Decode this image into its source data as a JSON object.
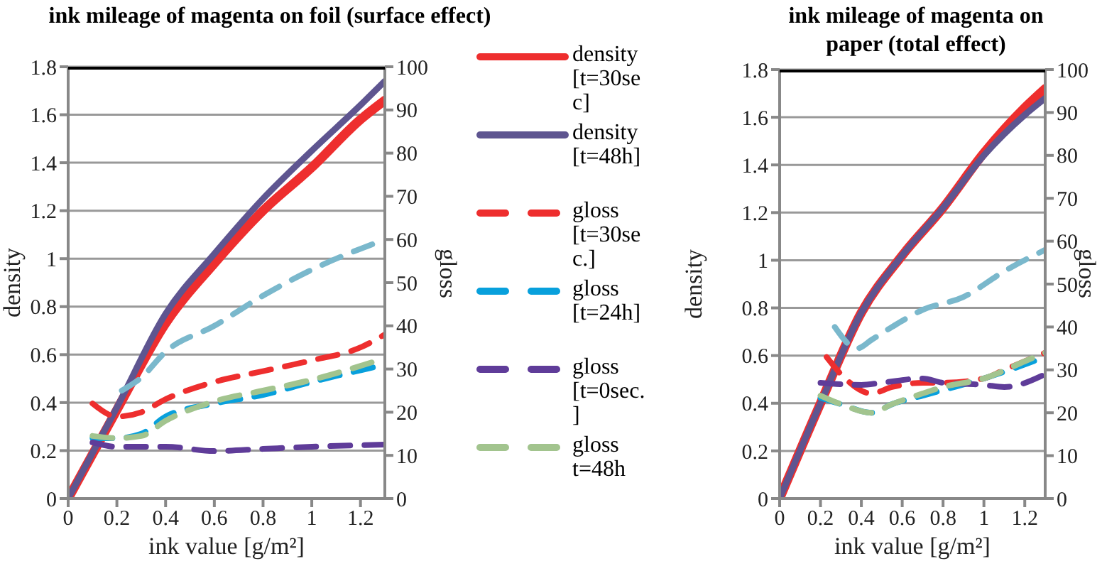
{
  "chart_data": [
    {
      "type": "line",
      "title": "ink mileage of magenta on foil (surface effect)",
      "xlabel": "ink value [g/m²]",
      "ylabel": "density",
      "y2label": "gloss",
      "xlim": [
        0,
        1.3
      ],
      "xticks": [
        0,
        0.2,
        0.4,
        0.6,
        0.8,
        1,
        1.2
      ],
      "ylim": [
        0,
        1.8
      ],
      "yticks": [
        0,
        0.2,
        0.4,
        0.6,
        0.8,
        1,
        1.2,
        1.4,
        1.6,
        1.8
      ],
      "y2lim": [
        0,
        100
      ],
      "y2ticks": [
        0,
        10,
        20,
        30,
        40,
        50,
        60,
        70,
        80,
        90,
        100
      ],
      "grid": "y",
      "legend": "right",
      "series": [
        {
          "name": "density [t=30sec]",
          "color": "#ee2e2e",
          "line_style": "solid",
          "x": [
            0,
            0.2,
            0.4,
            0.6,
            0.8,
            1,
            1.2,
            1.3
          ],
          "values": [
            0,
            0.37,
            0.73,
            0.98,
            1.2,
            1.38,
            1.58,
            1.66
          ]
        },
        {
          "name": "density [t=48h]",
          "color": "#5e5590",
          "line_style": "solid",
          "x": [
            0,
            0.2,
            0.4,
            0.6,
            0.8,
            1,
            1.2,
            1.3
          ],
          "values": [
            0,
            0.38,
            0.77,
            1.02,
            1.25,
            1.45,
            1.64,
            1.74
          ]
        },
        {
          "name": "gloss [t=30sec.]",
          "color": "#ee2e2e",
          "line_style": "dashed",
          "axis": "y2",
          "x": [
            0.1,
            0.2,
            0.3,
            0.4,
            0.6,
            0.8,
            1,
            1.2,
            1.3
          ],
          "values": [
            22,
            19,
            20,
            23,
            27,
            29.5,
            32,
            35,
            38
          ]
        },
        {
          "name": "gloss [t=24h]",
          "color": "#08a0dc",
          "line_style": "dashed",
          "axis": "y2",
          "x": [
            0.1,
            0.2,
            0.3,
            0.4,
            0.6,
            0.8,
            1,
            1.3
          ],
          "values": [
            14,
            14,
            15,
            19,
            22,
            24,
            27,
            31
          ]
        },
        {
          "name": "gloss [t=0sec.]",
          "color": "#5f3c99",
          "line_style": "dashed",
          "axis": "y2",
          "x": [
            0.1,
            0.2,
            0.4,
            0.6,
            0.8,
            1,
            1.3
          ],
          "values": [
            13,
            12,
            12,
            11,
            11.5,
            12,
            12.5
          ]
        },
        {
          "name": "gloss t=48h",
          "color": "#a2c48e",
          "line_style": "dashed",
          "axis": "y2",
          "x": [
            0.1,
            0.2,
            0.3,
            0.4,
            0.6,
            0.8,
            1,
            1.3
          ],
          "values": [
            14.5,
            14,
            14.5,
            18,
            22.5,
            25,
            27.5,
            32.5
          ]
        },
        {
          "color": "#7ab8cc",
          "line_style": "dashed",
          "axis": "y2",
          "x": [
            0.22,
            0.3,
            0.4,
            0.6,
            0.8,
            1,
            1.3
          ],
          "values": [
            25,
            28,
            34,
            40,
            47,
            53,
            60
          ]
        }
      ]
    },
    {
      "type": "line",
      "title": "ink mileage of magenta on paper (total effect)",
      "xlabel": "ink value [g/m²]",
      "ylabel": "density",
      "y2label": "gloss",
      "xlim": [
        0,
        1.3
      ],
      "xticks": [
        0,
        0.2,
        0.4,
        0.6,
        0.8,
        1,
        1.2
      ],
      "ylim": [
        0,
        1.8
      ],
      "yticks": [
        0,
        0.2,
        0.4,
        0.6,
        0.8,
        1,
        1.2,
        1.4,
        1.6,
        1.8
      ],
      "y2lim": [
        0,
        100
      ],
      "y2ticks": [
        0,
        10,
        20,
        30,
        40,
        50,
        60,
        70,
        80,
        90,
        100
      ],
      "grid": "y",
      "series": [
        {
          "color": "#ee2e2e",
          "line_style": "solid",
          "x": [
            0,
            0.2,
            0.4,
            0.6,
            0.8,
            1,
            1.2,
            1.3
          ],
          "values": [
            0,
            0.4,
            0.78,
            1.02,
            1.22,
            1.45,
            1.64,
            1.72
          ]
        },
        {
          "color": "#5e5590",
          "line_style": "solid",
          "x": [
            0,
            0.2,
            0.4,
            0.6,
            0.8,
            1,
            1.2,
            1.3
          ],
          "values": [
            0,
            0.4,
            0.78,
            1.02,
            1.22,
            1.44,
            1.61,
            1.68
          ]
        },
        {
          "color": "#ee2e2e",
          "line_style": "dashed",
          "axis": "y2",
          "x": [
            0.23,
            0.3,
            0.45,
            0.55,
            0.7,
            0.8,
            1,
            1.1,
            1.3
          ],
          "values": [
            33,
            29,
            24.5,
            26,
            27,
            27,
            28,
            30,
            34
          ]
        },
        {
          "color": "#08a0dc",
          "line_style": "dashed",
          "axis": "y2",
          "x": [
            0.2,
            0.3,
            0.45,
            0.55,
            0.7,
            1,
            1.3
          ],
          "values": [
            23.5,
            22,
            20,
            22,
            24,
            28,
            33
          ]
        },
        {
          "color": "#5f3c99",
          "line_style": "dashed",
          "axis": "y2",
          "x": [
            0.2,
            0.4,
            0.5,
            0.7,
            0.8,
            1,
            1.1,
            1.3
          ],
          "values": [
            27,
            26.5,
            27,
            28,
            27,
            26.5,
            26,
            29
          ]
        },
        {
          "color": "#a2c48e",
          "line_style": "dashed",
          "axis": "y2",
          "x": [
            0.2,
            0.3,
            0.45,
            0.55,
            0.7,
            0.8,
            1,
            1.2,
            1.3
          ],
          "values": [
            24,
            22,
            20,
            22,
            24.5,
            26,
            28,
            32,
            34
          ]
        },
        {
          "color": "#7ab8cc",
          "line_style": "dashed",
          "axis": "y2",
          "x": [
            0.27,
            0.38,
            0.45,
            0.55,
            0.7,
            0.9,
            1.1,
            1.3
          ],
          "values": [
            40,
            35,
            37,
            40,
            44,
            47,
            53,
            58
          ]
        }
      ]
    }
  ]
}
